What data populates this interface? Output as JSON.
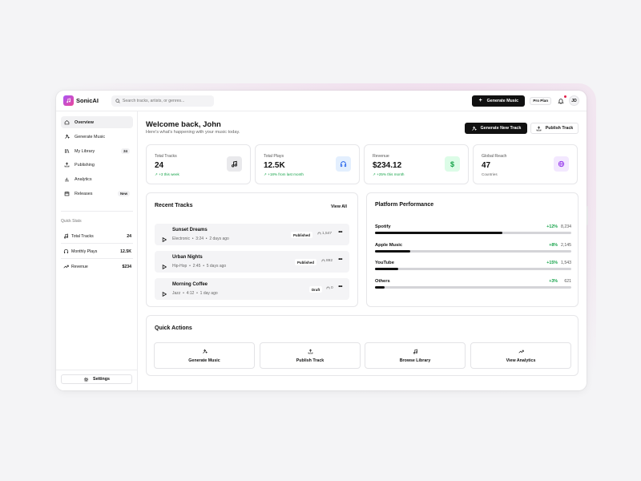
{
  "app": {
    "name": "SonicAI"
  },
  "search": {
    "placeholder": "Search tracks, artists, or genres..."
  },
  "topbar": {
    "generate_label": "Generate Music",
    "plan_badge": "Pro Plan",
    "avatar_initials": "JD"
  },
  "sidebar": {
    "items": [
      {
        "label": "Overview",
        "icon": "home-icon",
        "active": true
      },
      {
        "label": "Generate Music",
        "icon": "sparkles-icon"
      },
      {
        "label": "My Library",
        "icon": "library-icon",
        "badge": "24"
      },
      {
        "label": "Publishing",
        "icon": "upload-icon"
      },
      {
        "label": "Analytics",
        "icon": "bar-chart-icon"
      },
      {
        "label": "Releases",
        "icon": "calendar-icon",
        "badge": "New"
      }
    ],
    "quick_stats_label": "Quick Stats",
    "quick_stats": [
      {
        "label": "Total Tracks",
        "value": "24",
        "icon": "music-note-icon"
      },
      {
        "label": "Monthly Plays",
        "value": "12.5K",
        "icon": "headphones-icon"
      },
      {
        "label": "Revenue",
        "value": "$234",
        "icon": "trending-up-icon"
      }
    ],
    "settings_label": "Settings"
  },
  "header": {
    "title": "Welcome back, John",
    "subtitle": "Here's what's happening with your music today.",
    "new_track_label": "Generate New Track",
    "publish_label": "Publish Track"
  },
  "stats": [
    {
      "label": "Total Tracks",
      "value": "24",
      "delta": "+3 this week",
      "icon": "music-note-icon",
      "color": "#e9e9ec"
    },
    {
      "label": "Total Plays",
      "value": "12.5K",
      "delta": "+18% from last month",
      "icon": "headphones-icon",
      "color": "#e3effe"
    },
    {
      "label": "Revenue",
      "value": "$234.12",
      "delta": "+25% this month",
      "icon": "dollar-icon",
      "color": "#dcfce7"
    },
    {
      "label": "Global Reach",
      "value": "47",
      "delta": "Countries",
      "icon": "globe-icon",
      "color": "#f3e8ff"
    }
  ],
  "recent_tracks": {
    "title": "Recent Tracks",
    "view_all": "View All",
    "tracks": [
      {
        "name": "Sunset Dreams",
        "genre": "Electronic",
        "duration": "3:24",
        "ago": "2 days ago",
        "status": "Published",
        "plays": "1,547"
      },
      {
        "name": "Urban Nights",
        "genre": "Hip-Hop",
        "duration": "2:45",
        "ago": "5 days ago",
        "status": "Published",
        "plays": "892"
      },
      {
        "name": "Morning Coffee",
        "genre": "Jazz",
        "duration": "4:12",
        "ago": "1 day ago",
        "status": "Draft",
        "plays": "0"
      }
    ],
    "separator": "•",
    "more": "•••"
  },
  "platform": {
    "title": "Platform Performance",
    "rows": [
      {
        "name": "Spotify",
        "delta": "+12%",
        "value": "8,234",
        "share": 0.65
      },
      {
        "name": "Apple Music",
        "delta": "+8%",
        "value": "2,145",
        "share": 0.18
      },
      {
        "name": "YouTube",
        "delta": "+15%",
        "value": "1,543",
        "share": 0.12
      },
      {
        "name": "Others",
        "delta": "+3%",
        "value": "621",
        "share": 0.05
      }
    ]
  },
  "quick_actions": {
    "title": "Quick Actions",
    "items": [
      {
        "label": "Generate Music",
        "icon": "sparkles-icon"
      },
      {
        "label": "Publish Track",
        "icon": "upload-icon"
      },
      {
        "label": "Browse Library",
        "icon": "music-note-icon"
      },
      {
        "label": "View Analytics",
        "icon": "trending-up-icon"
      }
    ]
  }
}
